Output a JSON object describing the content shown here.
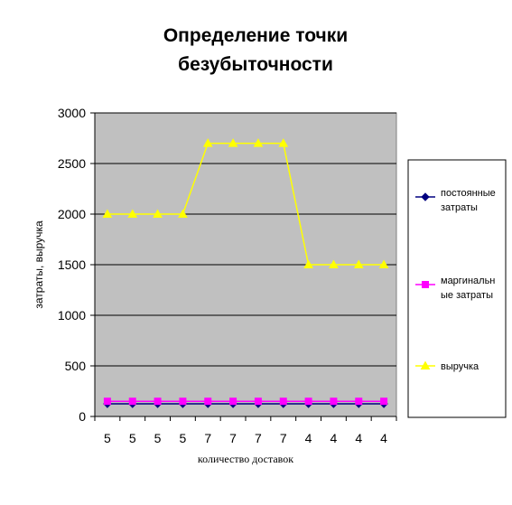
{
  "chart_data": {
    "type": "line",
    "title": [
      "Определение точки",
      "безубыточности"
    ],
    "xlabel": "количество доставок",
    "ylabel": "затраты, выручка",
    "categories": [
      "5",
      "5",
      "5",
      "5",
      "7",
      "7",
      "7",
      "7",
      "4",
      "4",
      "4",
      "4"
    ],
    "ylim": [
      0,
      3000
    ],
    "yticks": [
      0,
      500,
      1000,
      1500,
      2000,
      2500,
      3000
    ],
    "grid": true,
    "legend_position": "right",
    "series": [
      {
        "name": [
          "постоянные",
          "затраты"
        ],
        "color": "#000080",
        "marker": "diamond",
        "values": [
          125,
          125,
          125,
          125,
          125,
          125,
          125,
          125,
          125,
          125,
          125,
          125
        ]
      },
      {
        "name": [
          "маргинальн",
          "ые затраты"
        ],
        "color": "#FF00FF",
        "marker": "square",
        "values": [
          150,
          150,
          150,
          150,
          150,
          150,
          150,
          150,
          150,
          150,
          150,
          150
        ]
      },
      {
        "name": [
          "выручка"
        ],
        "color": "#FFFF00",
        "marker": "triangle",
        "values": [
          2000,
          2000,
          2000,
          2000,
          2700,
          2700,
          2700,
          2700,
          1500,
          1500,
          1500,
          1500
        ]
      }
    ],
    "plot_background": "#C0C0C0"
  }
}
